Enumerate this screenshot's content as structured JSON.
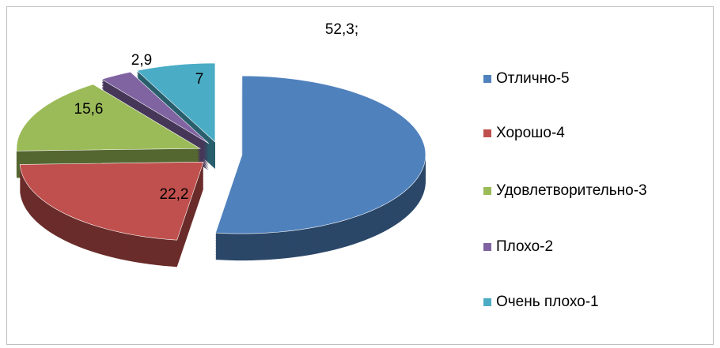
{
  "chart_data": {
    "type": "pie3d",
    "categories": [
      "Отлично-5",
      "Хорошо-4",
      "Удовлетворительно-3",
      "Плохо-2",
      "Очень плохо-1"
    ],
    "values": [
      52.3,
      22.2,
      15.6,
      2.9,
      7
    ],
    "value_labels": [
      "52,3;",
      "22,2",
      "15,6",
      "2,9",
      "7"
    ],
    "colors": [
      "#4f81bd",
      "#c0504d",
      "#9bbb59",
      "#8064a2",
      "#4bacc6"
    ],
    "legend": "right"
  }
}
